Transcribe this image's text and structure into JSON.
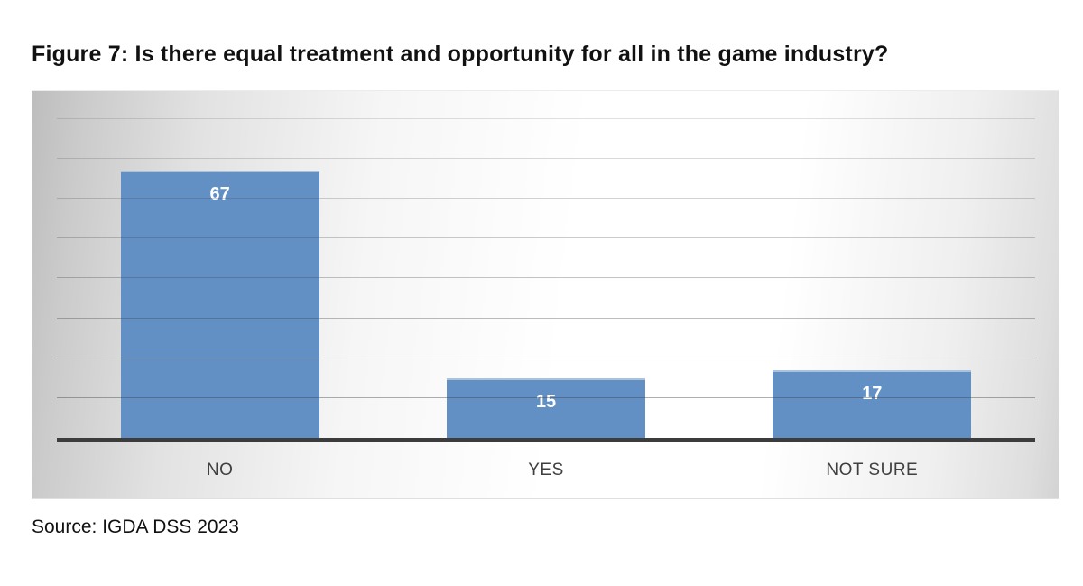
{
  "figure": {
    "title": "Figure 7: Is there equal treatment and opportunity for all in the game industry?",
    "source": "Source: IGDA DSS 2023"
  },
  "chart_data": {
    "type": "bar",
    "categories": [
      "NO",
      "YES",
      "NOT SURE"
    ],
    "values": [
      67,
      15,
      17
    ],
    "title": "Figure 7: Is there equal treatment and opportunity for all in the game industry?",
    "xlabel": "",
    "ylabel": "",
    "ylim": [
      0,
      87
    ],
    "gridlines": [
      10,
      20,
      30,
      40,
      50,
      60,
      70,
      80
    ],
    "grid": "horizontal",
    "legend": "none",
    "data_labels": "inside-end",
    "source": "Source: IGDA DSS 2023",
    "colors": {
      "bar": "#6290c4",
      "bar_top_edge": "#a9c3de",
      "value_label": "#ffffff",
      "axis_line": "#3c3c3c",
      "gridline": "#404040",
      "category_label": "#3f3f3f"
    }
  }
}
